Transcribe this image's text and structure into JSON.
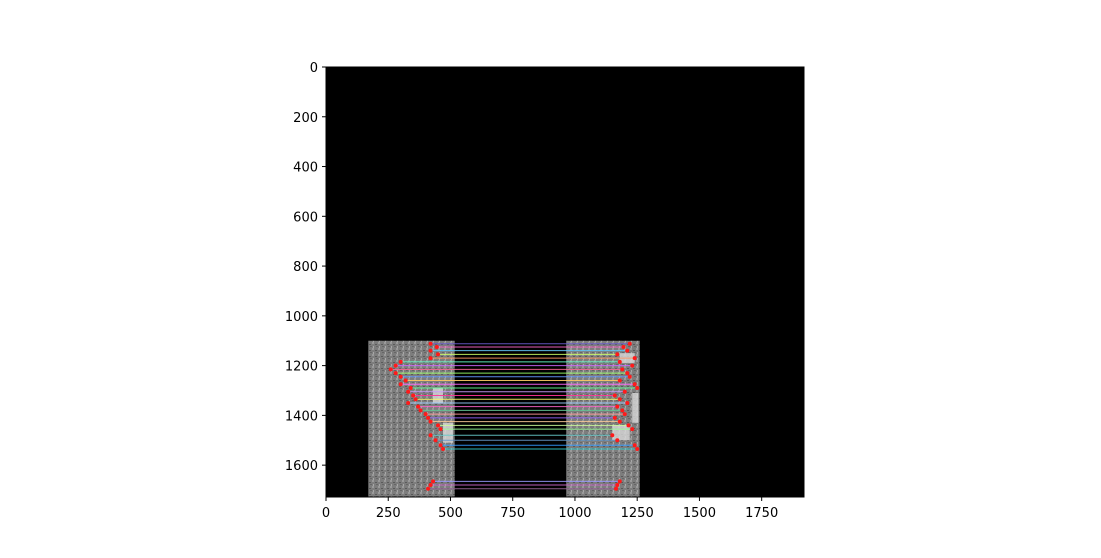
{
  "chart_data": {
    "type": "image",
    "title": "",
    "xlabel": "",
    "ylabel": "",
    "xlim": [
      0,
      1920
    ],
    "ylim": [
      1728,
      0
    ],
    "x_ticks": [
      0,
      250,
      500,
      750,
      1000,
      1250,
      1500,
      1750
    ],
    "y_ticks": [
      0,
      200,
      400,
      600,
      800,
      1000,
      1200,
      1400,
      1600
    ],
    "background": "#000000",
    "panels": [
      {
        "name": "left-photo",
        "x": [
          170,
          517
        ],
        "y": [
          1100,
          1728
        ]
      },
      {
        "name": "right-photo",
        "x": [
          965,
          1260
        ],
        "y": [
          1100,
          1728
        ]
      }
    ],
    "matches": [
      {
        "y": 1112,
        "x1": 420,
        "x2": 1220,
        "color": "#6a5acd"
      },
      {
        "y": 1125,
        "x1": 445,
        "x2": 1195,
        "color": "#ff66cc"
      },
      {
        "y": 1140,
        "x1": 420,
        "x2": 1210,
        "color": "#66ccff"
      },
      {
        "y": 1155,
        "x1": 450,
        "x2": 1170,
        "color": "#ccff66"
      },
      {
        "y": 1170,
        "x1": 420,
        "x2": 1240,
        "color": "#ff9966"
      },
      {
        "y": 1185,
        "x1": 300,
        "x2": 1180,
        "color": "#66ffcc"
      },
      {
        "y": 1200,
        "x1": 280,
        "x2": 1230,
        "color": "#cc66ff"
      },
      {
        "y": 1215,
        "x1": 260,
        "x2": 1190,
        "color": "#ff6699"
      },
      {
        "y": 1230,
        "x1": 280,
        "x2": 1210,
        "color": "#99ff66"
      },
      {
        "y": 1245,
        "x1": 300,
        "x2": 1220,
        "color": "#6699ff"
      },
      {
        "y": 1260,
        "x1": 320,
        "x2": 1180,
        "color": "#ffcc66"
      },
      {
        "y": 1275,
        "x1": 300,
        "x2": 1240,
        "color": "#ff66ff"
      },
      {
        "y": 1290,
        "x1": 340,
        "x2": 1250,
        "color": "#66ff99"
      },
      {
        "y": 1305,
        "x1": 330,
        "x2": 1200,
        "color": "#cc99ff"
      },
      {
        "y": 1320,
        "x1": 350,
        "x2": 1160,
        "color": "#ff3399"
      },
      {
        "y": 1335,
        "x1": 360,
        "x2": 1180,
        "color": "#ffff66"
      },
      {
        "y": 1350,
        "x1": 330,
        "x2": 1210,
        "color": "#99ccff"
      },
      {
        "y": 1365,
        "x1": 370,
        "x2": 1170,
        "color": "#ff66cc"
      },
      {
        "y": 1380,
        "x1": 380,
        "x2": 1190,
        "color": "#66cc99"
      },
      {
        "y": 1395,
        "x1": 400,
        "x2": 1200,
        "color": "#ff9999"
      },
      {
        "y": 1410,
        "x1": 410,
        "x2": 1160,
        "color": "#9966ff"
      },
      {
        "y": 1425,
        "x1": 420,
        "x2": 1180,
        "color": "#ffcc99"
      },
      {
        "y": 1440,
        "x1": 450,
        "x2": 1215,
        "color": "#ccff99"
      },
      {
        "y": 1455,
        "x1": 460,
        "x2": 1230,
        "color": "#99ff99"
      },
      {
        "y": 1480,
        "x1": 420,
        "x2": 1150,
        "color": "#66cccc"
      },
      {
        "y": 1500,
        "x1": 440,
        "x2": 1170,
        "color": "#6699cc"
      },
      {
        "y": 1520,
        "x1": 460,
        "x2": 1240,
        "color": "#3399ff"
      },
      {
        "y": 1535,
        "x1": 470,
        "x2": 1250,
        "color": "#33cccc"
      },
      {
        "y": 1665,
        "x1": 430,
        "x2": 1180,
        "color": "#9999ff"
      },
      {
        "y": 1680,
        "x1": 420,
        "x2": 1170,
        "color": "#cc66cc"
      },
      {
        "y": 1695,
        "x1": 410,
        "x2": 1165,
        "color": "#996699"
      }
    ]
  }
}
